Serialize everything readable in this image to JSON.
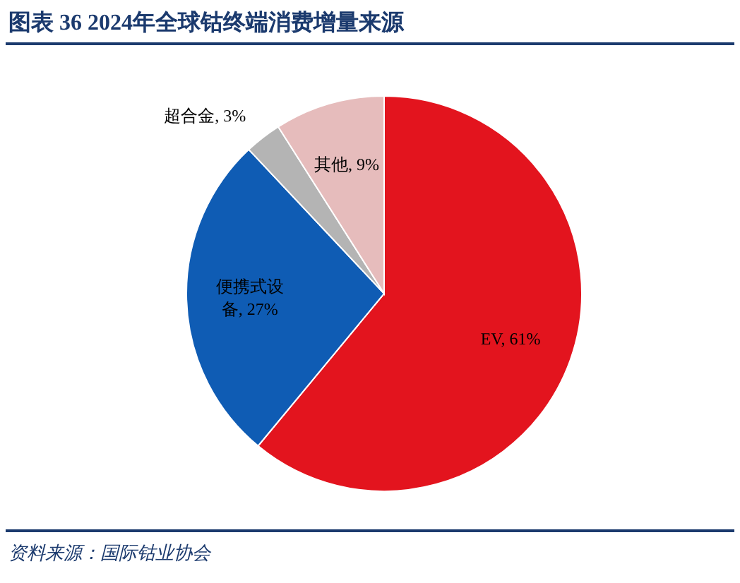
{
  "chart_data": {
    "type": "pie",
    "title": "图表 36   2024年全球钴终端消费增量来源",
    "categories": [
      "EV",
      "便携式设备",
      "超合金",
      "其他"
    ],
    "values": [
      61,
      27,
      3,
      9
    ],
    "colors": [
      "#e3141e",
      "#0f5cb4",
      "#b4b4b4",
      "#e6bcbc"
    ],
    "value_labels": [
      "61%",
      "27%",
      "3%",
      "9%"
    ],
    "annotations": [
      "资料来源：国际钴业协会"
    ]
  }
}
